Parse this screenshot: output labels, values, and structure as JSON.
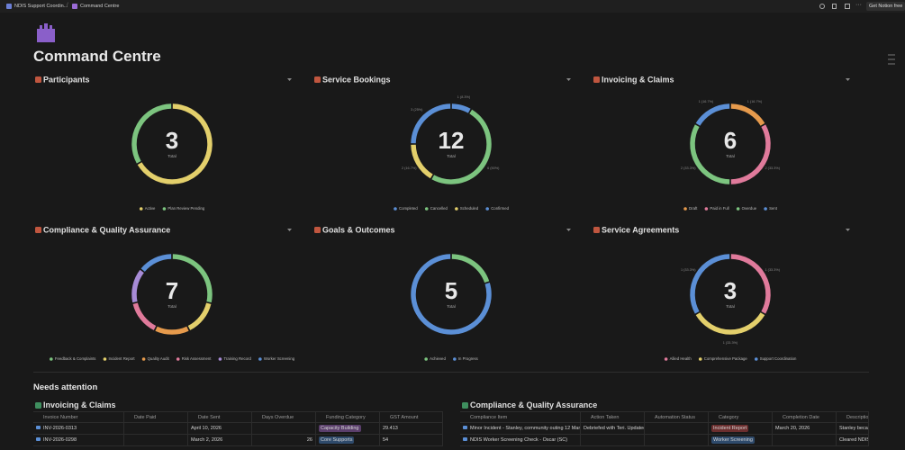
{
  "topbar": {
    "breadcrumbs": [
      "NDIS Support Coordin...",
      "Command Centre"
    ],
    "button": "Get Notion free"
  },
  "page": {
    "title": "Command Centre"
  },
  "chart_data": [
    {
      "type": "pie",
      "title": "Participants",
      "total": 3,
      "total_label": "Total",
      "categories": [
        "Active",
        "Plan Review Pending"
      ],
      "values": [
        2,
        1
      ],
      "colors": [
        "#e3cf6b",
        "#7cc47f"
      ]
    },
    {
      "type": "pie",
      "title": "Service Bookings",
      "total": 12,
      "total_label": "Total",
      "categories": [
        "Completed",
        "Cancelled",
        "Scheduled",
        "Confirmed"
      ],
      "values": [
        1,
        6,
        2,
        3
      ],
      "value_labels": [
        "1 (8.3%)",
        "6 (50%)",
        "2 (16.7%)",
        "3 (25%)"
      ],
      "colors": [
        "#5b8fd6",
        "#7cc47f",
        "#e3cf6b",
        "#5b8fd6"
      ]
    },
    {
      "type": "pie",
      "title": "Invoicing & Claims",
      "total": 6,
      "total_label": "Total",
      "categories": [
        "Draft",
        "Paid in Full",
        "Overdue",
        "Sent"
      ],
      "values": [
        1,
        2,
        2,
        1
      ],
      "value_labels": [
        "1 (16.7%)",
        "2 (33.3%)",
        "2 (33.3%)",
        "1 (16.7%)"
      ],
      "colors": [
        "#e69a4c",
        "#e07a9b",
        "#7cc47f",
        "#5b8fd6"
      ]
    },
    {
      "type": "pie",
      "title": "Compliance & Quality Assurance",
      "total": 7,
      "total_label": "Total",
      "categories": [
        "Feedback & Complaints",
        "Incident Report",
        "Quality Audit",
        "Risk Assessment",
        "Training Record",
        "Worker Screening"
      ],
      "values": [
        2,
        1,
        1,
        1,
        1,
        1
      ],
      "colors": [
        "#7cc47f",
        "#e3cf6b",
        "#e69a4c",
        "#e07a9b",
        "#a78bd6",
        "#5b8fd6"
      ]
    },
    {
      "type": "pie",
      "title": "Goals & Outcomes",
      "total": 5,
      "total_label": "Total",
      "categories": [
        "Achieved",
        "In Progress"
      ],
      "values": [
        1,
        4
      ],
      "colors": [
        "#7cc47f",
        "#5b8fd6"
      ]
    },
    {
      "type": "pie",
      "title": "Service Agreements",
      "total": 3,
      "total_label": "Total",
      "categories": [
        "Allied Health",
        "Comprehensive Package",
        "Support Coordination"
      ],
      "values": [
        1,
        1,
        1
      ],
      "value_labels": [
        "1 (33.3%)",
        "1 (33.3%)",
        "1 (33.3%)"
      ],
      "colors": [
        "#e07a9b",
        "#e3cf6b",
        "#5b8fd6"
      ]
    }
  ],
  "needs_attention": {
    "title": "Needs attention",
    "tables": [
      {
        "title": "Invoicing & Claims",
        "columns": [
          "Invoice Number",
          "Date Paid",
          "Date Sent",
          "Days Overdue",
          "Funding Category",
          "GST Amount"
        ],
        "rows": [
          [
            "INV-2026-0313",
            null,
            "April 10, 2026",
            null,
            {
              "text": "Capacity Building",
              "color": "#5a3e6b"
            },
            29.413
          ],
          [
            "INV-2026-0298",
            null,
            "March 2, 2026",
            26,
            {
              "text": "Core Supports",
              "color": "#2e4a6b"
            },
            54
          ]
        ]
      },
      {
        "title": "Compliance & Quality Assurance",
        "columns": [
          "Compliance Item",
          "Action Taken",
          "Automation Status",
          "Category",
          "Completion Date",
          "Description"
        ],
        "rows": [
          [
            "Minor Incident - Stanley, community outing 12 March",
            "Debriefed with Teri. Updated cc",
            null,
            {
              "text": "Incident Report",
              "color": "#6b2e2e"
            },
            "March 20, 2026",
            "Stanley becam"
          ],
          [
            "NDIS Worker Screening Check - Oscar (SC)",
            null,
            null,
            {
              "text": "Worker Screening",
              "color": "#2e4a6b"
            },
            null,
            "Cleared NDIS W"
          ]
        ]
      }
    ]
  }
}
